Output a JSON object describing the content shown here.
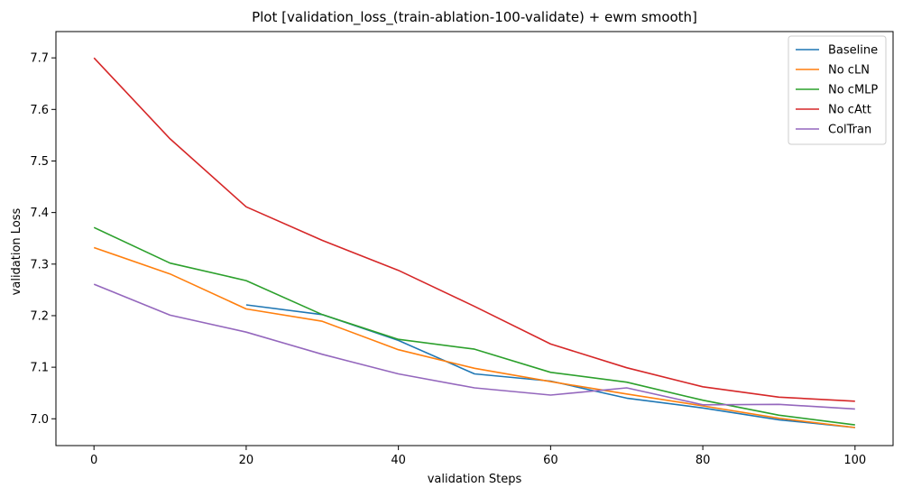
{
  "chart_data": {
    "type": "line",
    "title": "Plot [validation_loss_(train-ablation-100-validate) + ewm smooth]",
    "xlabel": "validation Steps",
    "ylabel": "validation Loss",
    "xlim": [
      -5,
      105
    ],
    "ylim": [
      6.948,
      7.751
    ],
    "xticks": [
      0,
      20,
      40,
      60,
      80,
      100
    ],
    "yticks": [
      7.0,
      7.1,
      7.2,
      7.3,
      7.4,
      7.5,
      7.6,
      7.7
    ],
    "xtick_labels": [
      "0",
      "20",
      "40",
      "60",
      "80",
      "100"
    ],
    "ytick_labels": [
      "7.0",
      "7.1",
      "7.2",
      "7.3",
      "7.4",
      "7.5",
      "7.6",
      "7.7"
    ],
    "grid": false,
    "legend_position": "top-right",
    "series": [
      {
        "name": "Baseline",
        "color": "#1f77b4",
        "x": [
          20,
          30,
          40,
          50,
          60,
          70,
          80,
          90,
          100
        ],
        "values": [
          7.221,
          7.202,
          7.152,
          7.087,
          7.073,
          7.04,
          7.021,
          6.998,
          6.983
        ]
      },
      {
        "name": "No cLN",
        "color": "#ff7f0e",
        "x": [
          0,
          10,
          20,
          30,
          40,
          50,
          60,
          70,
          80,
          90,
          100
        ],
        "values": [
          7.332,
          7.281,
          7.213,
          7.189,
          7.134,
          7.098,
          7.072,
          7.048,
          7.025,
          7.001,
          6.983
        ]
      },
      {
        "name": "No cMLP",
        "color": "#2ca02c",
        "x": [
          0,
          10,
          20,
          30,
          40,
          50,
          60,
          70,
          80,
          90,
          100
        ],
        "values": [
          7.371,
          7.302,
          7.268,
          7.202,
          7.154,
          7.135,
          7.09,
          7.071,
          7.036,
          7.007,
          6.988
        ]
      },
      {
        "name": "No cAtt",
        "color": "#d62728",
        "x": [
          0,
          10,
          20,
          30,
          40,
          50,
          60,
          70,
          80,
          90,
          100
        ],
        "values": [
          7.7,
          7.543,
          7.411,
          7.346,
          7.288,
          7.218,
          7.145,
          7.099,
          7.062,
          7.042,
          7.034
        ]
      },
      {
        "name": "ColTran",
        "color": "#9467bd",
        "x": [
          0,
          10,
          20,
          30,
          40,
          50,
          60,
          70,
          80,
          90,
          100
        ],
        "values": [
          7.261,
          7.201,
          7.168,
          7.125,
          7.087,
          7.06,
          7.046,
          7.06,
          7.027,
          7.028,
          7.019
        ]
      }
    ]
  }
}
